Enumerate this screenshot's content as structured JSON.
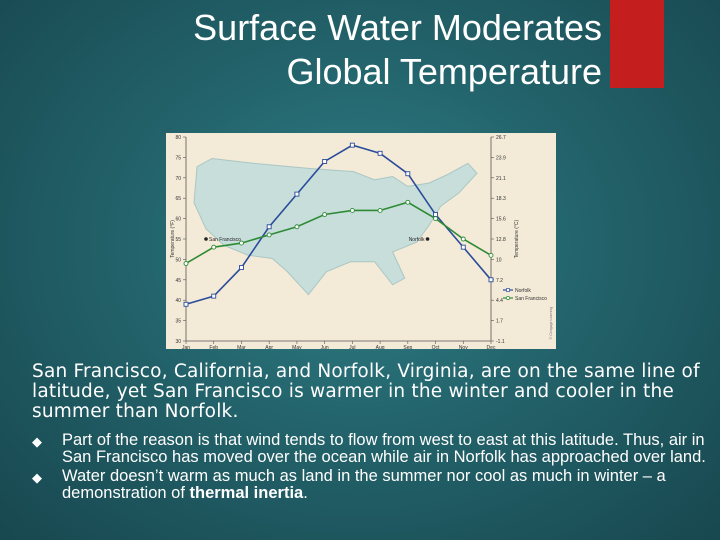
{
  "slide": {
    "title_line1": "Surface Water Moderates",
    "title_line2": "Global Temperature",
    "accent_color": "#c41e1e",
    "paragraph": "San Francisco, California, and Norfolk, Virginia, are on the same line of latitude, yet San Francisco is warmer in the winter and cooler in the summer than Norfolk.",
    "bullets": [
      {
        "text": "Part of the reason is that wind tends to flow from west to east at this latitude. Thus, air in San Francisco has moved over the ocean while air in Norfolk has approached over land.",
        "bold": ""
      },
      {
        "text": "Water doesn’t warm as much as land in the summer nor cool as much in winter – a demonstration of ",
        "bold": "thermal inertia",
        "after": "."
      }
    ],
    "bullet_icon": "diamond-bullet-icon"
  },
  "chart_data": {
    "type": "line",
    "categories": [
      "Jan",
      "Feb",
      "Mar",
      "Apr",
      "May",
      "Jun",
      "Jul",
      "Aug",
      "Sep",
      "Oct",
      "Nov",
      "Dec"
    ],
    "series": [
      {
        "name": "Norfolk",
        "color": "#2b4c9b",
        "marker": "square",
        "values": [
          39,
          41,
          48,
          58,
          66,
          74,
          78,
          76,
          71,
          61,
          53,
          45
        ]
      },
      {
        "name": "San Francisco",
        "color": "#2e8b35",
        "marker": "circle",
        "values": [
          49,
          53,
          54,
          56,
          58,
          61,
          62,
          62,
          64,
          60,
          55,
          51
        ]
      }
    ],
    "ylim": [
      30,
      80
    ],
    "y_ticks_left": [
      "30",
      "35",
      "40",
      "45",
      "50",
      "55",
      "60",
      "65",
      "70",
      "75",
      "80"
    ],
    "y_ticks_right": [
      "-1.1",
      "1.7",
      "4.4",
      "7.2",
      "10",
      "12.8",
      "15.6",
      "18.3",
      "21.1",
      "23.9",
      "26.7"
    ],
    "ylabel_left": "Temperature (°F)",
    "ylabel_right": "Temperature (°C)",
    "city_labels": [
      "San Francisco",
      "Norfolk"
    ],
    "legend": [
      "Norfolk",
      "San Francisco"
    ],
    "legend_position": "right",
    "copyright": "© Cengage Learning",
    "map_color": "#c7dedb"
  }
}
